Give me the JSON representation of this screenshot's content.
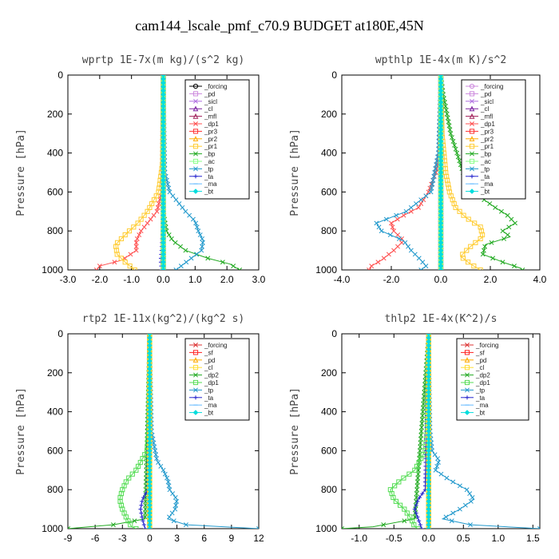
{
  "figure_title": "cam144_lscale_pmf_c70.9  BUDGET at180E,45N",
  "chart_data": [
    {
      "type": "line",
      "title": "wprtp  1E-7x(m kg)/(s^2 kg)",
      "ylabel": "Pressure [hPa]",
      "xlim": [
        -3.0,
        3.0
      ],
      "xticks": [
        -3.0,
        -2.0,
        -1.0,
        0.0,
        1.0,
        2.0,
        3.0
      ],
      "xtick_labels": [
        "-3.0",
        "-2.0",
        "-1.0",
        "0.0",
        "1.0",
        "2.0",
        "3.0"
      ],
      "ylim": [
        1000,
        0
      ],
      "yticks": [
        0,
        200,
        400,
        600,
        800,
        1000
      ],
      "ytick_labels": [
        "0",
        "200",
        "400",
        "600",
        "800",
        "1000"
      ],
      "legend_position": "top-right",
      "series": [
        {
          "name": "_forcing",
          "color": "#000000",
          "marker": "circle",
          "pressure": [
            0,
            1000
          ],
          "values": [
            0.0,
            0.0
          ]
        },
        {
          "name": "_pd",
          "color": "#cc88dd",
          "marker": "square",
          "pressure": [
            0,
            1000
          ],
          "values": [
            0.0,
            0.0
          ]
        },
        {
          "name": "_sicl",
          "color": "#b070e0",
          "marker": "cross",
          "pressure": [
            0,
            1000
          ],
          "values": [
            0.0,
            0.0
          ]
        },
        {
          "name": "_cl",
          "color": "#7a1fa0",
          "marker": "triangle",
          "pressure": [
            0,
            1000
          ],
          "values": [
            0.0,
            0.0
          ]
        },
        {
          "name": "_mfl",
          "color": "#a0205a",
          "marker": "triangle",
          "pressure": [
            0,
            1000
          ],
          "values": [
            0.0,
            0.0
          ]
        },
        {
          "name": "_dp1",
          "color": "#ff5050",
          "marker": "cross",
          "pressure": [
            0,
            600,
            700,
            750,
            800,
            850,
            900,
            950,
            980,
            1000
          ],
          "values": [
            0.0,
            -0.05,
            -0.2,
            -0.45,
            -0.7,
            -0.85,
            -0.85,
            -1.3,
            -2.0,
            -2.1
          ]
        },
        {
          "name": "_pr3",
          "color": "#ff3030",
          "marker": "square",
          "pressure": [
            0,
            1000
          ],
          "values": [
            0.0,
            0.0
          ]
        },
        {
          "name": "_pr2",
          "color": "#ffaa00",
          "marker": "triangle",
          "pressure": [
            0,
            1000
          ],
          "values": [
            0.0,
            0.0
          ]
        },
        {
          "name": "_pr1",
          "color": "#ffcc33",
          "marker": "square",
          "pressure": [
            0,
            450,
            600,
            700,
            760,
            820,
            870,
            920,
            960,
            1000
          ],
          "values": [
            0.0,
            -0.02,
            -0.15,
            -0.5,
            -0.8,
            -1.2,
            -1.5,
            -1.45,
            -1.2,
            -0.9
          ]
        },
        {
          "name": "_bp",
          "color": "#22aa22",
          "marker": "cross",
          "pressure": [
            0,
            700,
            800,
            850,
            900,
            940,
            970,
            1000
          ],
          "values": [
            0.0,
            0.0,
            0.1,
            0.3,
            0.7,
            1.4,
            2.1,
            2.4
          ]
        },
        {
          "name": "_ac",
          "color": "#88ff88",
          "marker": "square",
          "pressure": [
            0,
            1000
          ],
          "values": [
            0.0,
            0.0
          ]
        },
        {
          "name": "_tp",
          "color": "#2299cc",
          "marker": "cross",
          "pressure": [
            0,
            500,
            600,
            700,
            750,
            800,
            850,
            900,
            950,
            1000
          ],
          "values": [
            0.0,
            0.05,
            0.2,
            0.7,
            1.0,
            1.1,
            1.25,
            1.2,
            0.8,
            0.4
          ]
        },
        {
          "name": "_ta",
          "color": "#2222cc",
          "marker": "plus",
          "pressure": [
            0,
            800,
            900,
            950,
            1000
          ],
          "values": [
            0.0,
            -0.02,
            -0.05,
            -0.08,
            -0.05
          ]
        },
        {
          "name": "_ma",
          "color": "#66bbff",
          "marker": "dash",
          "pressure": [
            0,
            1000
          ],
          "values": [
            0.0,
            0.0
          ]
        },
        {
          "name": "_bt",
          "color": "#00dddd",
          "marker": "diamond",
          "pressure": [
            0,
            1000
          ],
          "values": [
            0.0,
            0.0
          ]
        }
      ]
    },
    {
      "type": "line",
      "title": "wpthlp  1E-4x(m K)/s^2",
      "ylabel": "Pressure [hPa]",
      "xlim": [
        -4.0,
        4.0
      ],
      "xticks": [
        -4.0,
        -2.0,
        0.0,
        2.0,
        4.0
      ],
      "xtick_labels": [
        "-4.0",
        "-2.0",
        "0.0",
        "2.0",
        "4.0"
      ],
      "ylim": [
        1000,
        0
      ],
      "yticks": [
        0,
        200,
        400,
        600,
        800,
        1000
      ],
      "ytick_labels": [
        "0",
        "200",
        "400",
        "600",
        "800",
        "1000"
      ],
      "legend_position": "top-right",
      "series": [
        {
          "name": "_forcing",
          "color": "#cc88dd",
          "marker": "circle",
          "pressure": [
            0,
            1000
          ],
          "values": [
            0.0,
            0.0
          ]
        },
        {
          "name": "_pd",
          "color": "#cc88dd",
          "marker": "square",
          "pressure": [
            0,
            1000
          ],
          "values": [
            0.0,
            0.0
          ]
        },
        {
          "name": "_sicl",
          "color": "#b070e0",
          "marker": "cross",
          "pressure": [
            0,
            1000
          ],
          "values": [
            0.0,
            0.0
          ]
        },
        {
          "name": "_cl",
          "color": "#7a1fa0",
          "marker": "triangle",
          "pressure": [
            0,
            1000
          ],
          "values": [
            0.0,
            0.0
          ]
        },
        {
          "name": "_mfl",
          "color": "#a0205a",
          "marker": "triangle",
          "pressure": [
            0,
            1000
          ],
          "values": [
            0.0,
            0.0
          ]
        },
        {
          "name": "_dp1",
          "color": "#ff5050",
          "marker": "cross",
          "pressure": [
            0,
            400,
            500,
            600,
            680,
            720,
            760,
            800,
            850,
            900,
            950,
            980,
            1000
          ],
          "values": [
            0.0,
            -0.05,
            -0.2,
            -0.5,
            -0.9,
            -1.5,
            -2.0,
            -1.9,
            -1.5,
            -1.9,
            -2.4,
            -2.8,
            -2.9
          ]
        },
        {
          "name": "_pr3",
          "color": "#ff3030",
          "marker": "square",
          "pressure": [
            0,
            1000
          ],
          "values": [
            0.0,
            0.0
          ]
        },
        {
          "name": "_pr2",
          "color": "#ffaa00",
          "marker": "triangle",
          "pressure": [
            0,
            1000
          ],
          "values": [
            0.0,
            0.0
          ]
        },
        {
          "name": "_pr1",
          "color": "#ffcc33",
          "marker": "square",
          "pressure": [
            0,
            300,
            500,
            600,
            680,
            730,
            780,
            830,
            880,
            930,
            970,
            1000
          ],
          "values": [
            0.0,
            0.05,
            0.2,
            0.35,
            0.6,
            1.0,
            1.6,
            1.7,
            1.2,
            0.8,
            1.2,
            1.6
          ]
        },
        {
          "name": "_bp",
          "color": "#22aa22",
          "marker": "cross",
          "pressure": [
            0,
            100,
            300,
            500,
            600,
            680,
            720,
            760,
            800,
            830,
            870,
            920,
            960,
            990,
            1000
          ],
          "values": [
            0.0,
            0.1,
            0.4,
            0.9,
            1.3,
            2.2,
            2.7,
            3.0,
            2.5,
            2.8,
            1.8,
            1.7,
            2.5,
            3.2,
            3.3
          ]
        },
        {
          "name": "_ac",
          "color": "#88ff88",
          "marker": "square",
          "pressure": [
            0,
            1000
          ],
          "values": [
            0.0,
            0.0
          ]
        },
        {
          "name": "_tp",
          "color": "#2299cc",
          "marker": "cross",
          "pressure": [
            0,
            400,
            600,
            700,
            760,
            800,
            850,
            900,
            950,
            980,
            1000
          ],
          "values": [
            0.0,
            -0.1,
            -0.4,
            -1.4,
            -2.6,
            -2.4,
            -1.5,
            -1.2,
            -0.8,
            -0.6,
            -0.8
          ]
        },
        {
          "name": "_ta",
          "color": "#2222cc",
          "marker": "plus",
          "pressure": [
            0,
            1000
          ],
          "values": [
            0.0,
            0.0
          ]
        },
        {
          "name": "_ma",
          "color": "#66bbff",
          "marker": "dash",
          "pressure": [
            0,
            1000
          ],
          "values": [
            0.0,
            0.0
          ]
        },
        {
          "name": "_bt",
          "color": "#00dddd",
          "marker": "diamond",
          "pressure": [
            0,
            1000
          ],
          "values": [
            0.0,
            0.0
          ]
        }
      ]
    },
    {
      "type": "line",
      "title": "rtp2  1E-11x(kg^2)/(kg^2 s)",
      "ylabel": "Pressure [hPa]",
      "xlim": [
        -9,
        12
      ],
      "xticks": [
        -9,
        -6,
        -3,
        0,
        3,
        6,
        9,
        12
      ],
      "xtick_labels": [
        "-9",
        "-6",
        "-3",
        "0",
        "3",
        "6",
        "9",
        "12"
      ],
      "ylim": [
        1000,
        0
      ],
      "yticks": [
        0,
        200,
        400,
        600,
        800,
        1000
      ],
      "ytick_labels": [
        "0",
        "200",
        "400",
        "600",
        "800",
        "1000"
      ],
      "legend_position": "top-right",
      "series": [
        {
          "name": "_forcing",
          "color": "#dd3333",
          "marker": "cross",
          "pressure": [
            0,
            1000
          ],
          "values": [
            0.0,
            0.0
          ]
        },
        {
          "name": "_sf",
          "color": "#ff2222",
          "marker": "square",
          "pressure": [
            0,
            1000
          ],
          "values": [
            0.0,
            0.0
          ]
        },
        {
          "name": "_pd",
          "color": "#ffaa00",
          "marker": "triangle",
          "pressure": [
            0,
            1000
          ],
          "values": [
            0.0,
            0.0
          ]
        },
        {
          "name": "_cl",
          "color": "#ffdd33",
          "marker": "square",
          "pressure": [
            0,
            1000
          ],
          "values": [
            0.0,
            0.0
          ]
        },
        {
          "name": "_dp2",
          "color": "#22aa22",
          "marker": "cross",
          "pressure": [
            0,
            950,
            980,
            1000
          ],
          "values": [
            0.0,
            -0.5,
            -4.0,
            -9.0
          ]
        },
        {
          "name": "_dp1",
          "color": "#55dd55",
          "marker": "square",
          "pressure": [
            0,
            500,
            600,
            700,
            750,
            800,
            850,
            900,
            950,
            990,
            1000
          ],
          "values": [
            0.0,
            -0.1,
            -0.3,
            -1.5,
            -2.5,
            -3.0,
            -3.3,
            -3.0,
            -2.5,
            -2.0,
            -1.5
          ]
        },
        {
          "name": "_tp",
          "color": "#2299cc",
          "marker": "cross",
          "pressure": [
            0,
            500,
            650,
            700,
            750,
            800,
            850,
            900,
            950,
            980,
            1000
          ],
          "values": [
            0.0,
            0.2,
            0.8,
            1.5,
            2.0,
            2.2,
            3.0,
            2.8,
            2.0,
            4.0,
            12.0
          ]
        },
        {
          "name": "_ta",
          "color": "#2222cc",
          "marker": "plus",
          "pressure": [
            0,
            800,
            850,
            900,
            950,
            1000
          ],
          "values": [
            0.0,
            -0.2,
            -0.8,
            -1.0,
            -0.8,
            -0.5
          ]
        },
        {
          "name": "_ma",
          "color": "#66bbff",
          "marker": "dash",
          "pressure": [
            0,
            1000
          ],
          "values": [
            0.0,
            0.0
          ]
        },
        {
          "name": "_bt",
          "color": "#00dddd",
          "marker": "diamond",
          "pressure": [
            0,
            1000
          ],
          "values": [
            0.0,
            0.0
          ]
        }
      ]
    },
    {
      "type": "line",
      "title": "thlp2  1E-4x(K^2)/s",
      "ylabel": "Pressure [hPa]",
      "xlim": [
        -1.25,
        1.6
      ],
      "xticks": [
        -1.0,
        -0.5,
        0.0,
        0.5,
        1.0,
        1.5
      ],
      "xtick_labels": [
        "-1.0",
        "-0.5",
        "0.0",
        "0.5",
        "1.0",
        "1.5"
      ],
      "ylim": [
        1000,
        0
      ],
      "yticks": [
        0,
        200,
        400,
        600,
        800,
        1000
      ],
      "ytick_labels": [
        "0",
        "200",
        "400",
        "600",
        "800",
        "1000"
      ],
      "legend_position": "top-right",
      "series": [
        {
          "name": "_forcing",
          "color": "#dd3333",
          "marker": "cross",
          "pressure": [
            0,
            1000
          ],
          "values": [
            0.0,
            0.0
          ]
        },
        {
          "name": "_sf",
          "color": "#ff2222",
          "marker": "square",
          "pressure": [
            0,
            1000
          ],
          "values": [
            0.0,
            0.0
          ]
        },
        {
          "name": "_pd",
          "color": "#ffaa00",
          "marker": "triangle",
          "pressure": [
            0,
            1000
          ],
          "values": [
            0.0,
            0.0
          ]
        },
        {
          "name": "_cl",
          "color": "#ffdd33",
          "marker": "square",
          "pressure": [
            0,
            1000
          ],
          "values": [
            0.0,
            0.0
          ]
        },
        {
          "name": "_dp2",
          "color": "#22aa22",
          "marker": "cross",
          "pressure": [
            0,
            950,
            990,
            1000
          ],
          "values": [
            0.0,
            -0.2,
            -0.8,
            -1.25
          ]
        },
        {
          "name": "_dp1",
          "color": "#55dd55",
          "marker": "square",
          "pressure": [
            0,
            500,
            600,
            700,
            750,
            800,
            850,
            900,
            950,
            990,
            1000
          ],
          "values": [
            0.0,
            -0.02,
            -0.05,
            -0.2,
            -0.4,
            -0.55,
            -0.5,
            -0.35,
            -0.25,
            -0.2,
            -0.15
          ]
        },
        {
          "name": "_tp",
          "color": "#2299cc",
          "marker": "cross",
          "pressure": [
            0,
            500,
            600,
            650,
            700,
            750,
            800,
            850,
            900,
            950,
            980,
            1000
          ],
          "values": [
            0.0,
            0.02,
            0.05,
            0.15,
            0.1,
            0.3,
            0.55,
            0.65,
            0.45,
            0.2,
            0.6,
            1.6
          ]
        },
        {
          "name": "_ta",
          "color": "#2222cc",
          "marker": "plus",
          "pressure": [
            0,
            800,
            850,
            900,
            950,
            1000
          ],
          "values": [
            0.0,
            -0.05,
            -0.15,
            -0.2,
            -0.15,
            -0.1
          ]
        },
        {
          "name": "_ma",
          "color": "#66bbff",
          "marker": "dash",
          "pressure": [
            0,
            1000
          ],
          "values": [
            0.0,
            0.0
          ]
        },
        {
          "name": "_bt",
          "color": "#00dddd",
          "marker": "diamond",
          "pressure": [
            0,
            1000
          ],
          "values": [
            0.0,
            0.0
          ]
        }
      ]
    }
  ]
}
